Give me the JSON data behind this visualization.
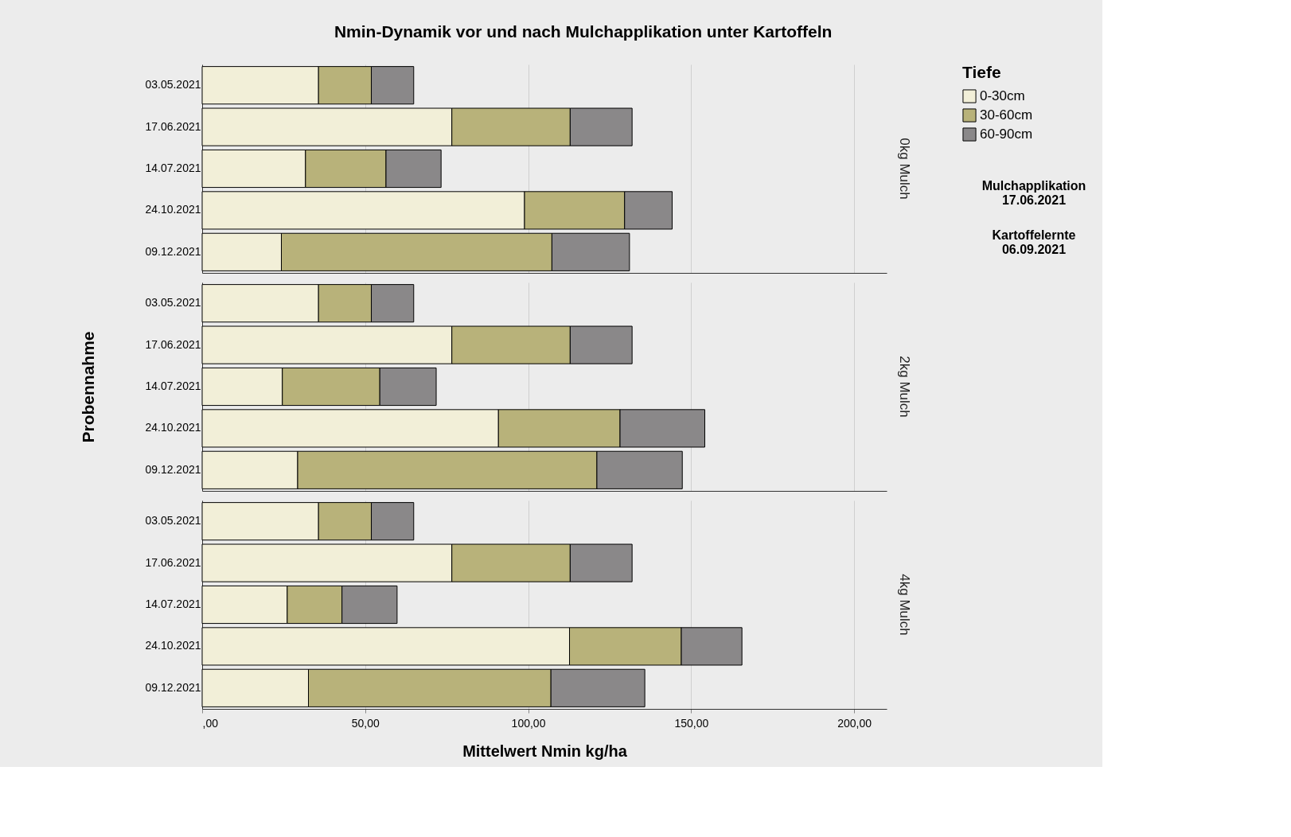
{
  "chart_data": [
    {
      "type": "bar",
      "orientation": "horizontal",
      "stacked": true,
      "title": "Nmin-Dynamik vor und nach Mulchapplikation unter Kartoffeln",
      "y2label": "0kg Mulch",
      "legend": "top right",
      "legend_title": "Tiefe",
      "annotations": [
        "Mulchapplikation\n17.06.2021",
        "Kartoffelernte\n06.09.2021"
      ],
      "categories": [
        "03.05.2021",
        "17.06.2021",
        "14.07.2021",
        "24.10.2021",
        "09.12.2021"
      ],
      "series": [
        {
          "name": "0-30cm",
          "color": "#f2efd8",
          "values": [
            35.7,
            76.6,
            31.7,
            98.9,
            24.3
          ]
        },
        {
          "name": "30-60cm",
          "color": "#b8b27a",
          "values": [
            16.2,
            36.3,
            24.7,
            30.7,
            83.0
          ]
        },
        {
          "name": "60-90cm",
          "color": "#8a8889",
          "values": [
            13.0,
            19.0,
            16.9,
            14.6,
            23.8
          ]
        }
      ],
      "xlim": [
        0,
        210
      ],
      "xticks": [
        {
          "value": 0,
          "label": null
        },
        {
          "value": 50,
          "label": null
        },
        {
          "value": 100,
          "label": null
        },
        {
          "value": 150,
          "label": null
        },
        {
          "value": 200,
          "label": null
        }
      ],
      "grid": "x",
      "tick_labels": "y"
    },
    {
      "type": "bar",
      "orientation": "horizontal",
      "stacked": true,
      "y2label": "2kg Mulch",
      "ylabel": "Probennahme",
      "categories": [
        "03.05.2021",
        "17.06.2021",
        "14.07.2021",
        "24.10.2021",
        "09.12.2021"
      ],
      "series": [
        {
          "color": "#f2efd8",
          "values": [
            35.7,
            76.6,
            24.6,
            90.9,
            29.3
          ]
        },
        {
          "color": "#b8b27a",
          "values": [
            16.2,
            36.3,
            29.9,
            37.3,
            91.8
          ]
        },
        {
          "color": "#8a8889",
          "values": [
            13.0,
            19.0,
            17.3,
            26.0,
            26.2
          ]
        }
      ],
      "xlim": [
        0,
        210
      ],
      "xticks": [
        {
          "value": 0,
          "label": null
        },
        {
          "value": 50,
          "label": null
        },
        {
          "value": 100,
          "label": null
        },
        {
          "value": 150,
          "label": null
        },
        {
          "value": 200,
          "label": null
        }
      ],
      "grid": "x",
      "tick_labels": "y"
    },
    {
      "type": "bar",
      "orientation": "horizontal",
      "stacked": true,
      "y2label": "4kg Mulch",
      "xlabel": "Mittelwert Nmin kg/ha",
      "categories": [
        "03.05.2021",
        "17.06.2021",
        "14.07.2021",
        "24.10.2021",
        "09.12.2021"
      ],
      "series": [
        {
          "color": "#f2efd8",
          "values": [
            35.7,
            76.6,
            26.1,
            112.7,
            32.6
          ]
        },
        {
          "color": "#b8b27a",
          "values": [
            16.2,
            36.3,
            16.8,
            34.3,
            74.4
          ]
        },
        {
          "color": "#8a8889",
          "values": [
            13.0,
            19.0,
            16.9,
            18.6,
            28.8
          ]
        }
      ],
      "xlim": [
        0,
        210
      ],
      "xticks": [
        {
          "value": 0,
          "label": ",00"
        },
        {
          "value": 50,
          "label": "50,00"
        },
        {
          "value": 100,
          "label": "100,00"
        },
        {
          "value": 150,
          "label": "150,00"
        },
        {
          "value": 200,
          "label": "200,00"
        }
      ],
      "grid": "x"
    }
  ]
}
